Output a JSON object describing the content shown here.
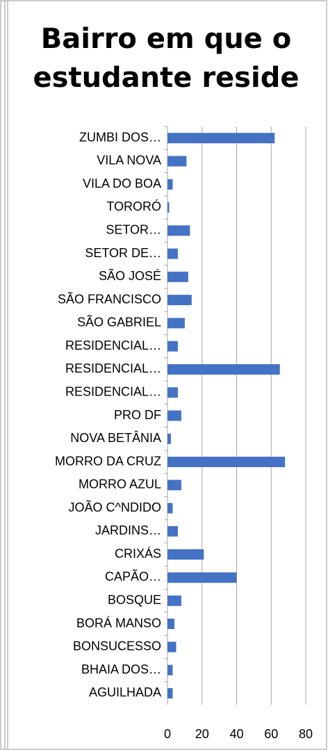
{
  "chart_data": {
    "type": "bar",
    "orientation": "horizontal",
    "title": "Bairro em que o estudante reside",
    "categories": [
      "ZUMBI DOS…",
      "VILA NOVA",
      "VILA DO BOA",
      "TORORÓ",
      "SETOR…",
      "SETOR DE…",
      "SÃO JOSÉ",
      "SÃO FRANCISCO",
      "SÃO GABRIEL",
      "RESIDENCIAL…",
      "RESIDENCIAL…",
      "RESIDENCIAL…",
      "PRO DF",
      "NOVA BETÂNIA",
      "MORRO DA CRUZ",
      "MORRO AZUL",
      "JOÃO C^NDIDO",
      "JARDINS…",
      "CRIXÁS",
      "CAPÃO…",
      "BOSQUE",
      "BORÁ MANSO",
      "BONSUCESSO",
      "BHAIA DOS…",
      "AGUILHADA"
    ],
    "values": [
      62,
      11,
      3,
      1,
      13,
      6,
      12,
      14,
      10,
      6,
      65,
      6,
      8,
      2,
      68,
      8,
      3,
      6,
      21,
      40,
      8,
      4,
      5,
      3,
      3
    ],
    "color": "#4472c4",
    "xlim": [
      0,
      80
    ],
    "xticks": [
      0,
      20,
      40,
      60,
      80
    ],
    "grid": true
  }
}
